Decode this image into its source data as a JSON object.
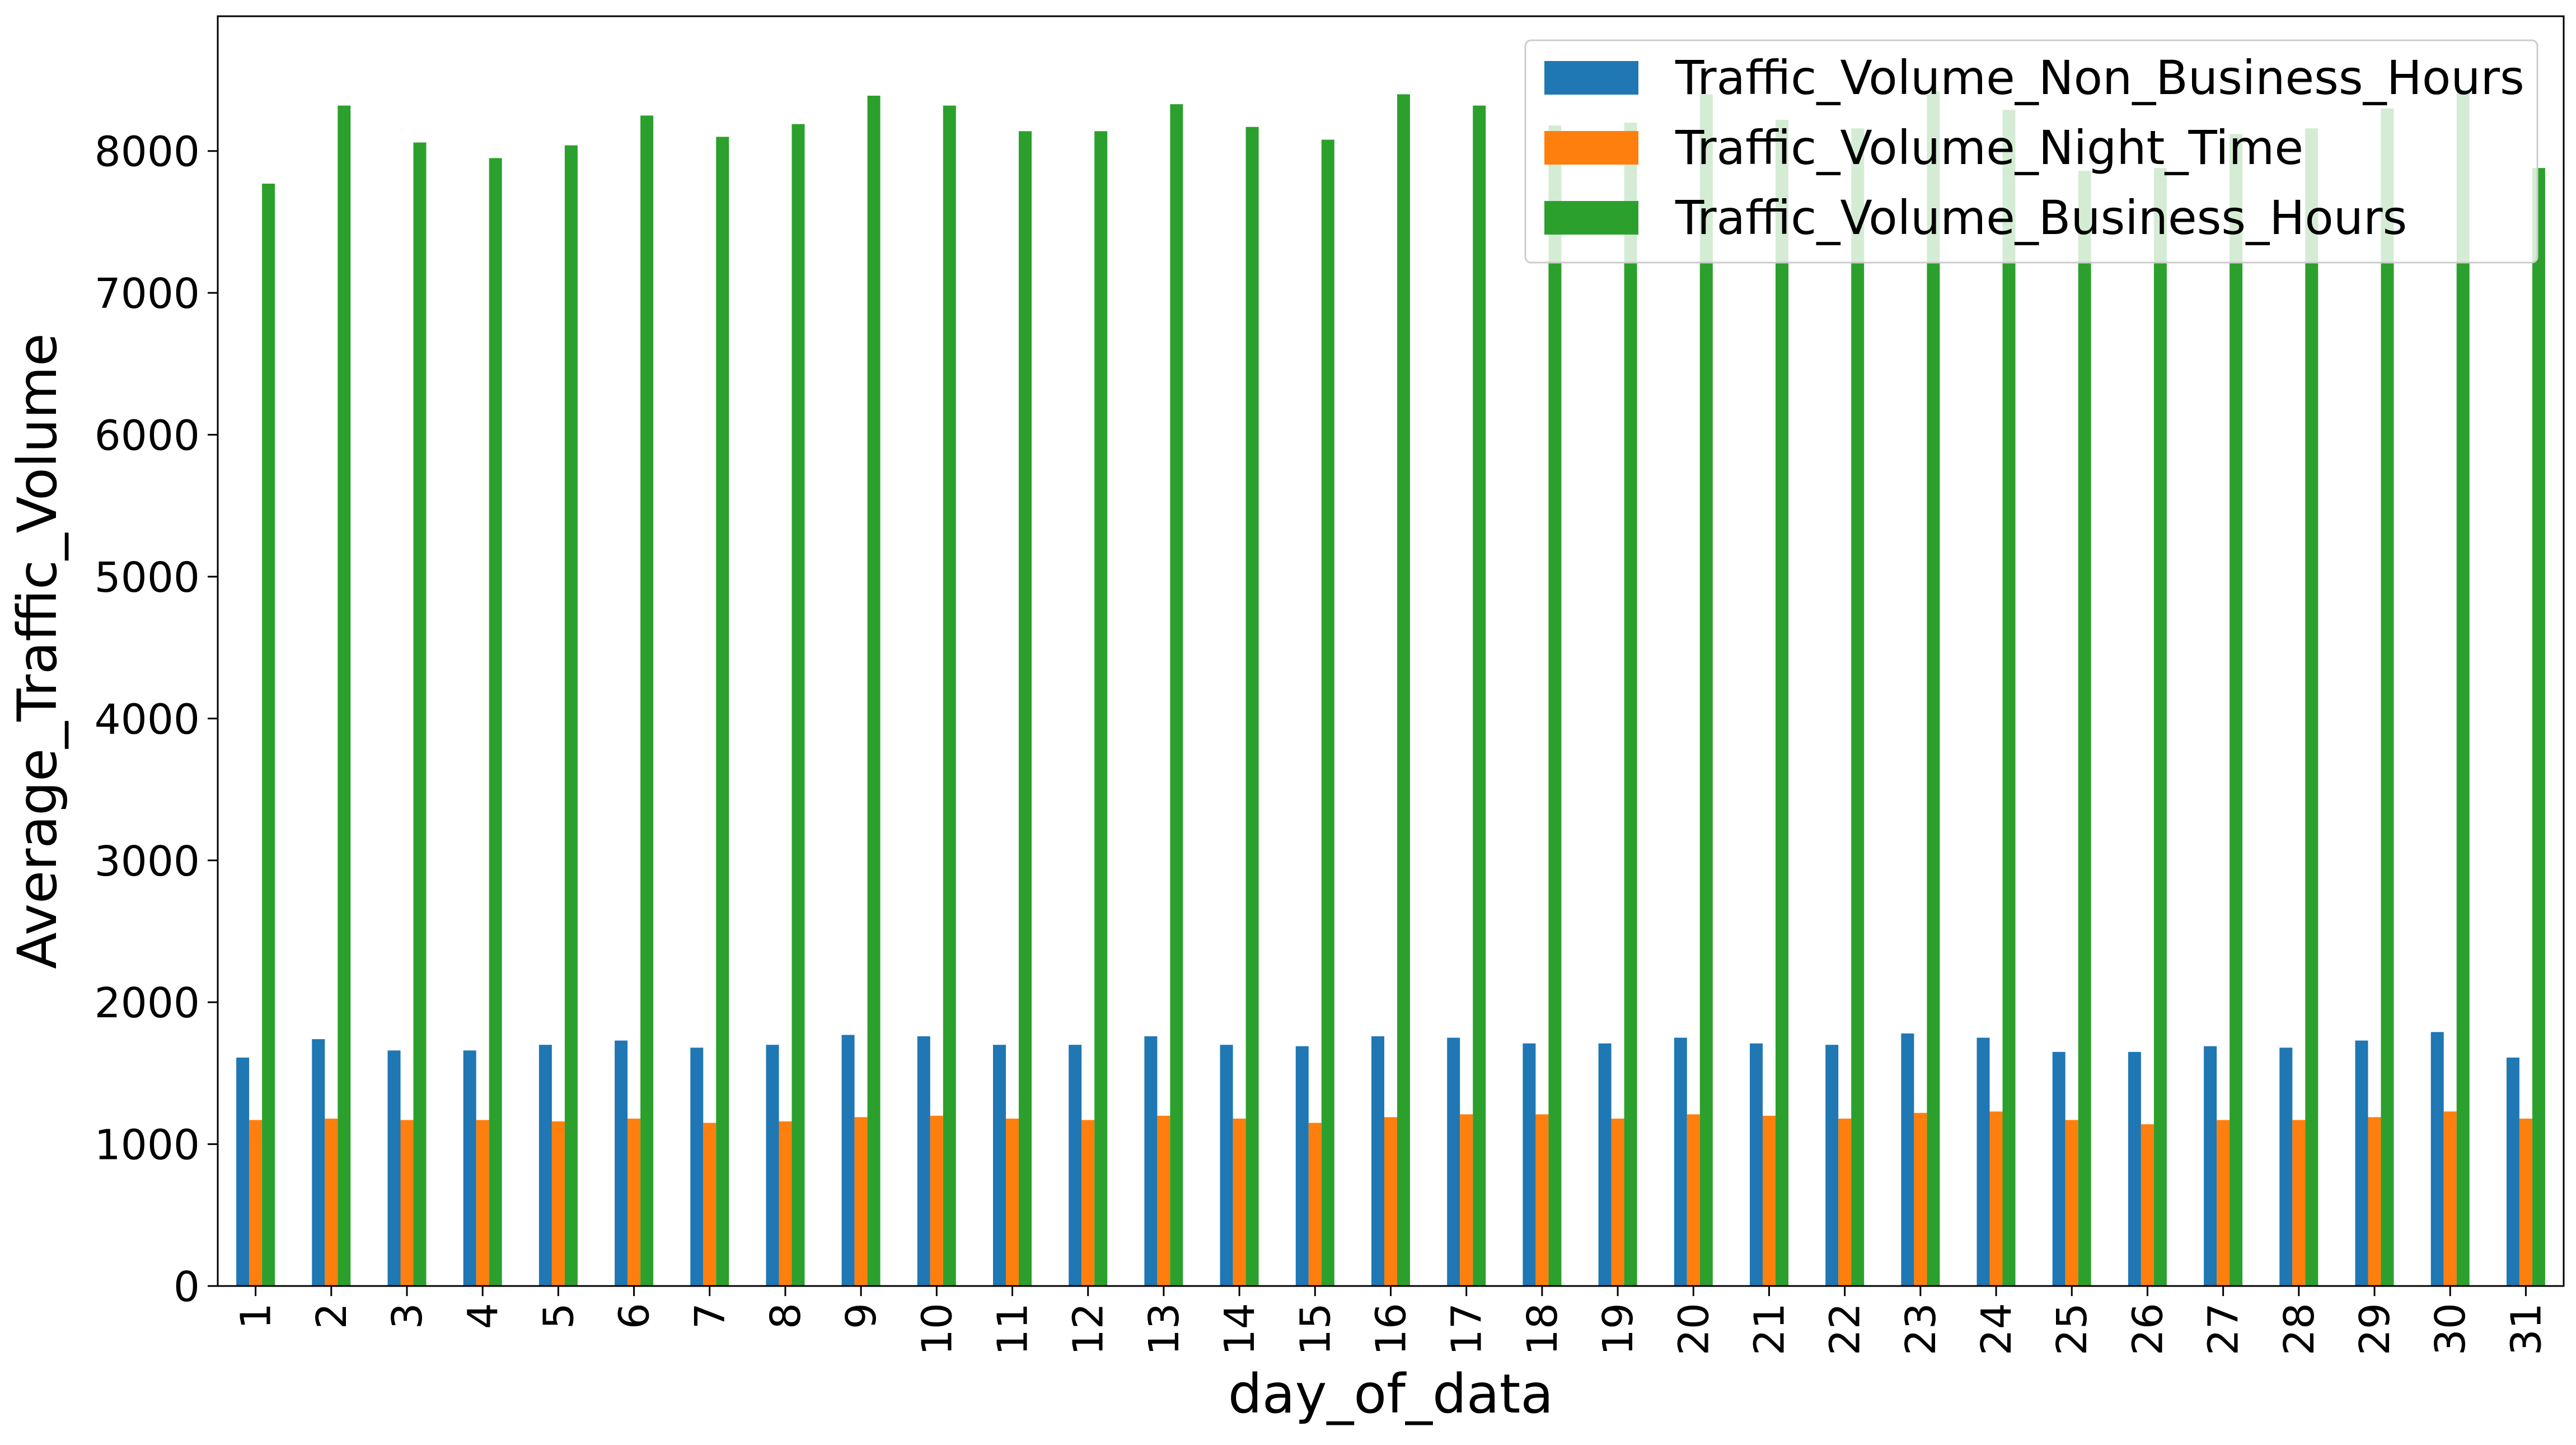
{
  "chart_data": {
    "type": "bar",
    "title": "",
    "xlabel": "day_of_data",
    "ylabel": "Average_Traffic_Volume",
    "ylim": [
      0,
      8950
    ],
    "yticks": [
      0,
      1000,
      2000,
      3000,
      4000,
      5000,
      6000,
      7000,
      8000
    ],
    "grid": false,
    "legend_position": "top-right",
    "categories": [
      "1",
      "2",
      "3",
      "4",
      "5",
      "6",
      "7",
      "8",
      "9",
      "10",
      "11",
      "12",
      "13",
      "14",
      "15",
      "16",
      "17",
      "18",
      "19",
      "20",
      "21",
      "22",
      "23",
      "24",
      "25",
      "26",
      "27",
      "28",
      "29",
      "30",
      "31"
    ],
    "series": [
      {
        "name": "Traffic_Volume_Non_Business_Hours",
        "color": "#1f77b4",
        "values": [
          1610,
          1740,
          1660,
          1660,
          1700,
          1730,
          1680,
          1700,
          1770,
          1760,
          1700,
          1700,
          1760,
          1700,
          1690,
          1760,
          1750,
          1710,
          1710,
          1750,
          1710,
          1700,
          1780,
          1750,
          1650,
          1650,
          1690,
          1680,
          1730,
          1790,
          1610
        ]
      },
      {
        "name": "Traffic_Volume_Night_Time",
        "color": "#ff7f0e",
        "values": [
          1170,
          1180,
          1170,
          1170,
          1160,
          1180,
          1150,
          1160,
          1190,
          1200,
          1180,
          1170,
          1200,
          1180,
          1150,
          1190,
          1210,
          1210,
          1180,
          1210,
          1200,
          1180,
          1220,
          1230,
          1170,
          1140,
          1170,
          1170,
          1190,
          1230,
          1180
        ]
      },
      {
        "name": "Traffic_Volume_Business_Hours",
        "color": "#2ca02c",
        "values": [
          7770,
          8320,
          8060,
          7950,
          8040,
          8250,
          8100,
          8190,
          8390,
          8320,
          8140,
          8140,
          8330,
          8170,
          8080,
          8400,
          8320,
          8180,
          8200,
          8400,
          8220,
          8160,
          8420,
          8290,
          7860,
          7880,
          8120,
          8160,
          8300,
          8430,
          7880
        ]
      }
    ]
  }
}
